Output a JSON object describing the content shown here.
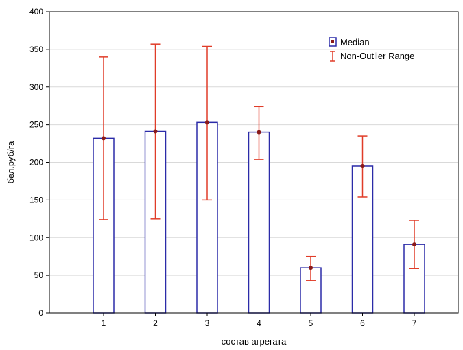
{
  "chart_data": {
    "type": "bar",
    "xlabel": "состав агрегата",
    "ylabel": "бел.руб/га",
    "ylim": [
      0,
      400
    ],
    "yticks": [
      0,
      50,
      100,
      150,
      200,
      250,
      300,
      350,
      400
    ],
    "categories": [
      "1",
      "2",
      "3",
      "4",
      "5",
      "6",
      "7"
    ],
    "series": [
      {
        "name": "Median",
        "values": [
          232,
          241,
          253,
          240,
          60,
          195,
          91
        ]
      },
      {
        "name": "Non-Outlier Range",
        "low": [
          124,
          125,
          150,
          204,
          43,
          154,
          59
        ],
        "high": [
          340,
          357,
          354,
          274,
          75,
          235,
          123
        ]
      }
    ],
    "grid": true,
    "legend_position": "top-right",
    "colors": {
      "bar_edge": "#2b2ba8",
      "range": "#e03c28",
      "marker": "#8a1a1a",
      "grid": "#d9d9d9"
    }
  }
}
